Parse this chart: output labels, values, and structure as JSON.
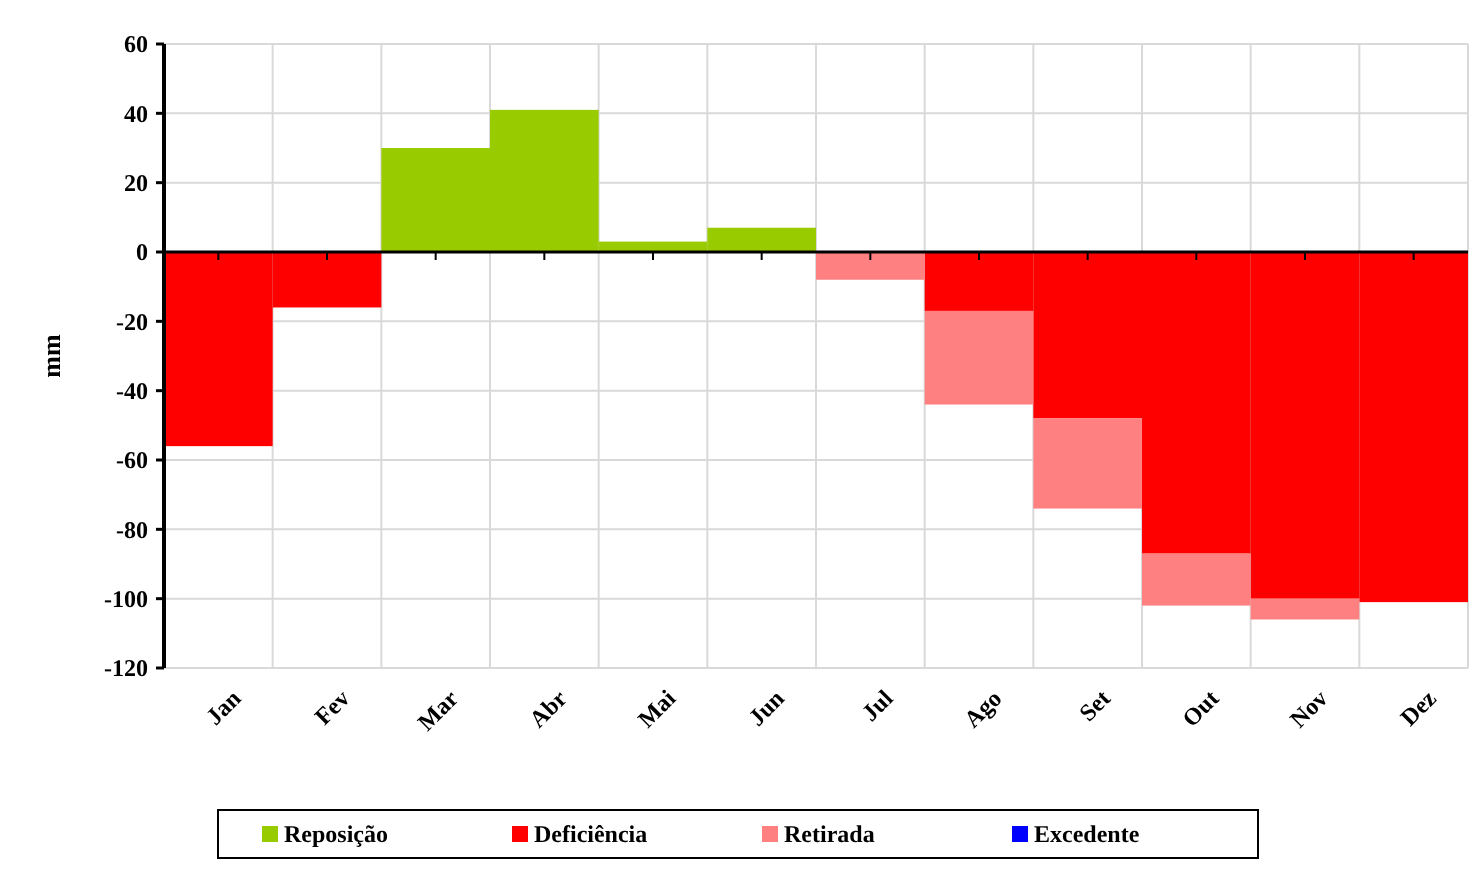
{
  "chart_data": {
    "type": "bar",
    "ylabel": "mm",
    "stacked": true,
    "categories": [
      "Jan",
      "Fev",
      "Mar",
      "Abr",
      "Mai",
      "Jun",
      "Jul",
      "Ago",
      "Set",
      "Out",
      "Nov",
      "Dez"
    ],
    "series": [
      {
        "name": "Reposição",
        "color": "#99cc00",
        "values": [
          null,
          null,
          30,
          41,
          3,
          7,
          null,
          null,
          null,
          null,
          null,
          null
        ]
      },
      {
        "name": "Deficiência",
        "color": "#ff0000",
        "values": [
          -56,
          -16,
          null,
          null,
          null,
          null,
          null,
          -17,
          -48,
          -87,
          -100,
          -101
        ]
      },
      {
        "name": "Retirada",
        "color": "#ff8080",
        "values": [
          null,
          null,
          null,
          null,
          null,
          null,
          -8,
          -27,
          -26,
          -15,
          -6,
          null
        ]
      },
      {
        "name": "Excedente",
        "color": "#0000ff",
        "values": [
          null,
          null,
          null,
          null,
          null,
          null,
          null,
          null,
          null,
          null,
          null,
          null
        ]
      }
    ],
    "ylim": [
      -120,
      60
    ],
    "yticks": [
      -120,
      -100,
      -80,
      -60,
      -40,
      -20,
      0,
      20,
      40,
      60
    ],
    "grid": true,
    "legend": "bottom"
  }
}
